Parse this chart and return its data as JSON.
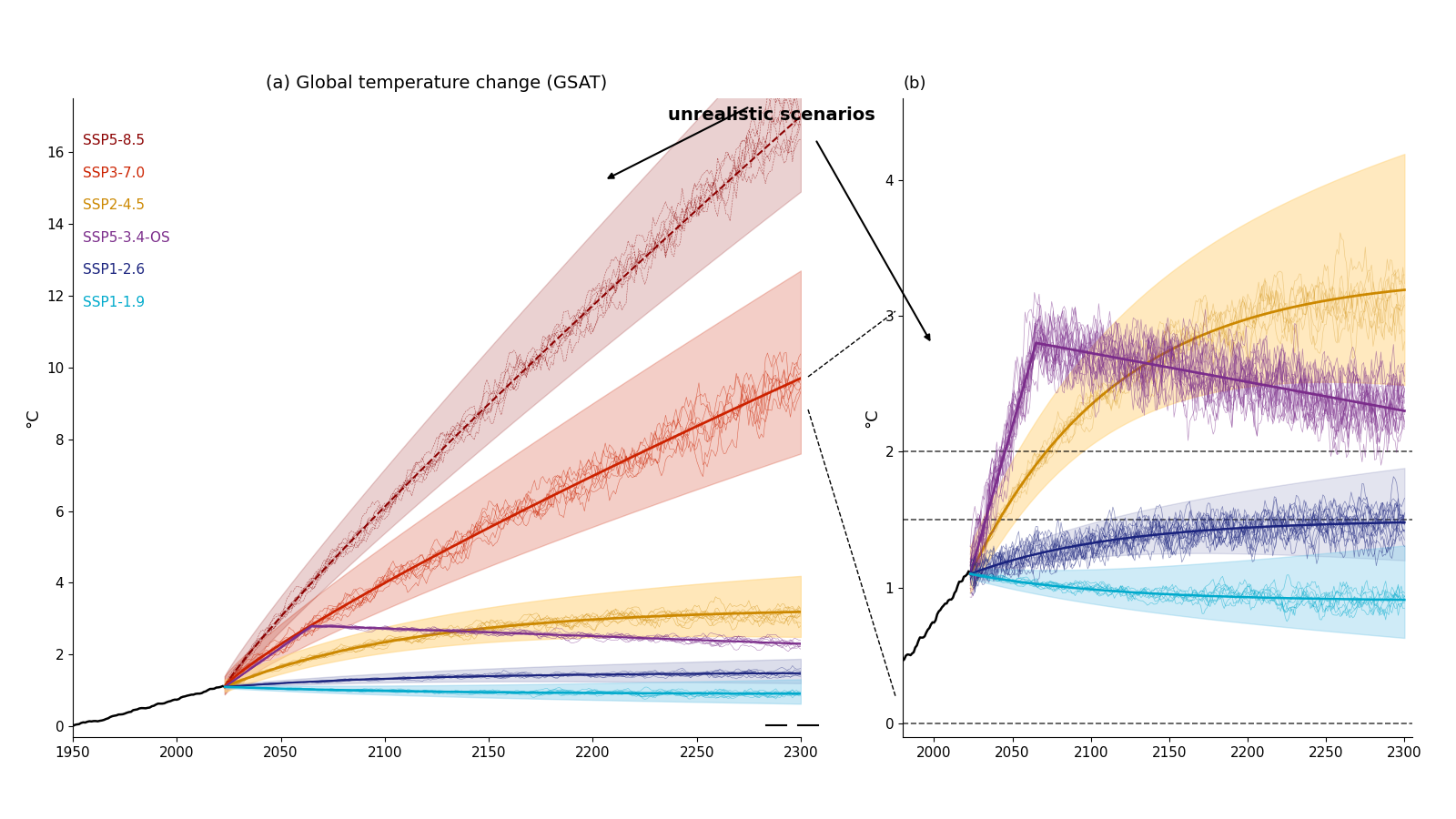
{
  "title_a": "(a) Global temperature change (GSAT)",
  "title_b": "(b)",
  "annotation": "unrealistic scenarios",
  "ylabel": "°C",
  "scenarios": {
    "SSP5-8.5": {
      "color": "#8B0000",
      "linestyle": "--",
      "label": "SSP5-8.5"
    },
    "SSP3-7.0": {
      "color": "#CC2200",
      "linestyle": "-",
      "label": "SSP3-7.0"
    },
    "SSP2-4.5": {
      "color": "#CC8800",
      "linestyle": "-",
      "label": "SSP2-4.5"
    },
    "SSP5-3.4-OS": {
      "color": "#7B2D8B",
      "linestyle": "-",
      "label": "SSP5-3.4-OS"
    },
    "SSP1-2.6": {
      "color": "#1A237E",
      "linestyle": "-",
      "label": "SSP1-2.6"
    },
    "SSP1-1.9": {
      "color": "#00AACC",
      "linestyle": "-",
      "label": "SSP1-1.9"
    }
  },
  "xlim_a": [
    1950,
    2300
  ],
  "ylim_a": [
    -0.3,
    17.5
  ],
  "xlim_b": [
    1980,
    2305
  ],
  "ylim_b": [
    -0.1,
    4.6
  ],
  "dashed_lines_b": [
    0.0,
    1.5,
    2.0
  ],
  "background_color": "#ffffff",
  "seed": 42
}
